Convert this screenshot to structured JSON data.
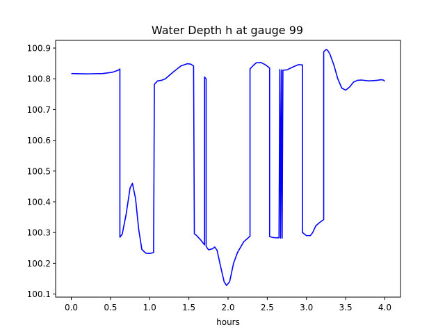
{
  "chart_data": {
    "type": "line",
    "title": "Water Depth h at gauge 99",
    "xlabel": "hours",
    "ylabel": "",
    "xlim": [
      -0.2,
      4.2
    ],
    "ylim": [
      100.09,
      100.925
    ],
    "grid": false,
    "xticks": [
      0.0,
      0.5,
      1.0,
      1.5,
      2.0,
      2.5,
      3.0,
      3.5,
      4.0
    ],
    "xtick_labels": [
      "0.0",
      "0.5",
      "1.0",
      "1.5",
      "2.0",
      "2.5",
      "3.0",
      "3.5",
      "4.0"
    ],
    "yticks": [
      100.1,
      100.2,
      100.3,
      100.4,
      100.5,
      100.6,
      100.7,
      100.8,
      100.9
    ],
    "ytick_labels": [
      "100.1",
      "100.2",
      "100.3",
      "100.4",
      "100.5",
      "100.6",
      "100.7",
      "100.8",
      "100.9"
    ],
    "series": [
      {
        "color": "#0000ff",
        "x": [
          0.0,
          0.2,
          0.4,
          0.52,
          0.6,
          0.62,
          0.62,
          0.65,
          0.7,
          0.75,
          0.78,
          0.82,
          0.86,
          0.9,
          0.95,
          1.0,
          1.05,
          1.06,
          1.1,
          1.15,
          1.2,
          1.3,
          1.4,
          1.48,
          1.52,
          1.56,
          1.57,
          1.6,
          1.65,
          1.7,
          1.7,
          1.72,
          1.72,
          1.75,
          1.8,
          1.83,
          1.86,
          1.9,
          1.95,
          1.98,
          2.02,
          2.07,
          2.12,
          2.2,
          2.28,
          2.28,
          2.32,
          2.36,
          2.42,
          2.48,
          2.53,
          2.53,
          2.57,
          2.6,
          2.65,
          2.66,
          2.67,
          2.68,
          2.69,
          2.7,
          2.7,
          2.75,
          2.8,
          2.85,
          2.9,
          2.95,
          2.95,
          3.0,
          3.05,
          3.08,
          3.12,
          3.17,
          3.22,
          3.22,
          3.25,
          3.27,
          3.3,
          3.35,
          3.4,
          3.45,
          3.5,
          3.55,
          3.6,
          3.65,
          3.7,
          3.8,
          3.9,
          3.95,
          3.98,
          4.0
        ],
        "y": [
          100.817,
          100.816,
          100.817,
          100.821,
          100.828,
          100.832,
          100.285,
          100.295,
          100.36,
          100.445,
          100.46,
          100.41,
          100.31,
          100.245,
          100.233,
          100.232,
          100.235,
          100.782,
          100.793,
          100.795,
          100.8,
          100.822,
          100.842,
          100.849,
          100.848,
          100.842,
          100.296,
          100.29,
          100.276,
          100.26,
          100.806,
          100.8,
          100.255,
          100.244,
          100.247,
          100.253,
          100.242,
          100.195,
          100.14,
          100.128,
          100.14,
          100.2,
          100.235,
          100.27,
          100.288,
          100.832,
          100.843,
          100.852,
          100.853,
          100.845,
          100.835,
          100.287,
          100.284,
          100.283,
          100.283,
          100.83,
          100.282,
          100.829,
          100.282,
          100.828,
          100.828,
          100.829,
          100.835,
          100.841,
          100.846,
          100.845,
          100.3,
          100.29,
          100.29,
          100.3,
          100.322,
          100.333,
          100.342,
          100.888,
          100.895,
          100.893,
          100.88,
          100.845,
          100.8,
          100.77,
          100.763,
          100.773,
          100.789,
          100.795,
          100.796,
          100.793,
          100.795,
          100.797,
          100.796,
          100.792
        ]
      }
    ]
  }
}
